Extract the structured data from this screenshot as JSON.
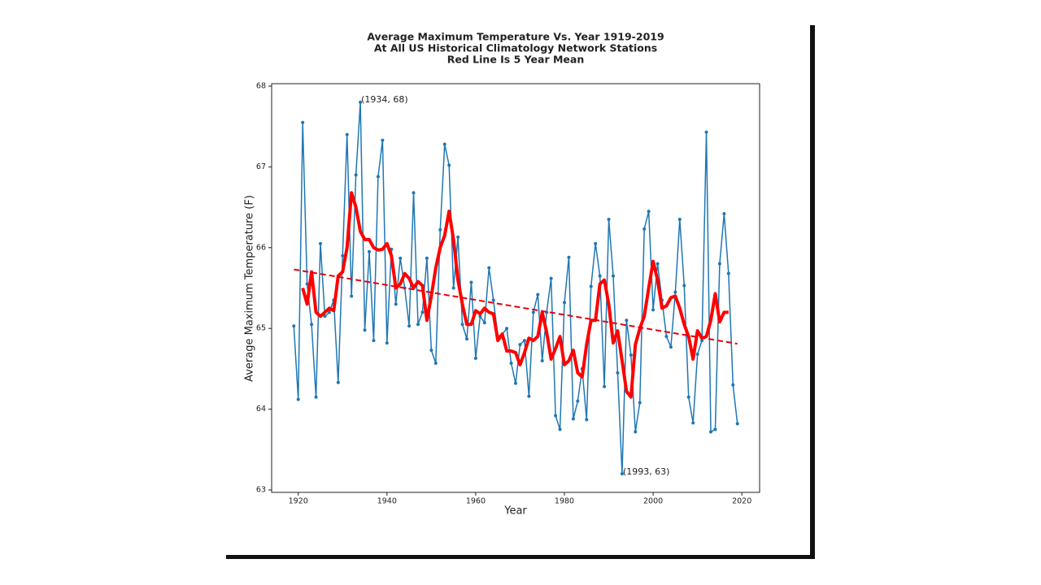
{
  "chart_data": {
    "type": "line",
    "title": [
      "Average Maximum Temperature Vs. Year 1919-2019",
      "At All US Historical Climatology Network Stations",
      "Red Line Is 5 Year Mean"
    ],
    "xlabel": "Year",
    "ylabel": "Average Maximum Temperature (F)",
    "xlim": [
      1914,
      2024
    ],
    "ylim": [
      62.97,
      68.03
    ],
    "xticks": [
      1920,
      1940,
      1960,
      1980,
      2000,
      2020
    ],
    "yticks": [
      63,
      64,
      65,
      66,
      67,
      68
    ],
    "annotations": [
      "(1934, 68)",
      "(1993, 63)"
    ],
    "series": [
      {
        "color": "#1f77b4",
        "marker": true,
        "x": [
          1919,
          1920,
          1921,
          1922,
          1923,
          1924,
          1925,
          1926,
          1927,
          1928,
          1929,
          1930,
          1931,
          1932,
          1933,
          1934,
          1935,
          1936,
          1937,
          1938,
          1939,
          1940,
          1941,
          1942,
          1943,
          1944,
          1945,
          1946,
          1947,
          1948,
          1949,
          1950,
          1951,
          1952,
          1953,
          1954,
          1955,
          1956,
          1957,
          1958,
          1959,
          1960,
          1961,
          1962,
          1963,
          1964,
          1965,
          1966,
          1967,
          1968,
          1969,
          1970,
          1971,
          1972,
          1973,
          1974,
          1975,
          1976,
          1977,
          1978,
          1979,
          1980,
          1981,
          1982,
          1983,
          1984,
          1985,
          1986,
          1987,
          1988,
          1989,
          1990,
          1991,
          1992,
          1993,
          1994,
          1995,
          1996,
          1997,
          1998,
          1999,
          2000,
          2001,
          2002,
          2003,
          2004,
          2005,
          2006,
          2007,
          2008,
          2009,
          2010,
          2011,
          2012,
          2013,
          2014,
          2015,
          2016,
          2017,
          2018,
          2019
        ],
        "values": [
          65.03,
          64.12,
          67.55,
          65.55,
          65.05,
          64.15,
          66.05,
          65.15,
          65.2,
          65.35,
          64.33,
          65.9,
          67.4,
          65.4,
          66.9,
          67.8,
          64.98,
          65.95,
          64.85,
          66.88,
          67.33,
          64.82,
          65.98,
          65.3,
          65.87,
          65.5,
          65.03,
          66.68,
          65.05,
          65.2,
          65.87,
          64.73,
          64.57,
          66.22,
          67.28,
          67.02,
          65.5,
          66.13,
          65.05,
          64.87,
          65.57,
          64.63,
          65.15,
          65.07,
          65.75,
          65.35,
          64.9,
          64.93,
          65.0,
          64.57,
          64.32,
          64.8,
          64.85,
          64.16,
          65.2,
          65.42,
          64.6,
          65.2,
          65.62,
          63.92,
          63.75,
          65.32,
          65.88,
          63.88,
          64.1,
          64.5,
          63.87,
          65.52,
          66.05,
          65.65,
          64.28,
          66.35,
          65.65,
          64.45,
          63.2,
          65.1,
          64.67,
          63.72,
          64.08,
          66.23,
          66.45,
          65.23,
          65.8,
          65.35,
          64.9,
          64.77,
          65.45,
          66.35,
          65.53,
          64.15,
          63.83,
          64.68,
          64.85,
          67.43,
          63.72,
          63.75,
          65.8,
          66.42,
          65.68,
          64.3,
          63.82
        ]
      },
      {
        "color": "#ff0000",
        "width": 4,
        "x": [
          1921,
          1922,
          1923,
          1924,
          1925,
          1926,
          1927,
          1928,
          1929,
          1930,
          1931,
          1932,
          1933,
          1934,
          1935,
          1936,
          1937,
          1938,
          1939,
          1940,
          1941,
          1942,
          1943,
          1944,
          1945,
          1946,
          1947,
          1948,
          1949,
          1950,
          1951,
          1952,
          1953,
          1954,
          1955,
          1956,
          1957,
          1958,
          1959,
          1960,
          1961,
          1962,
          1963,
          1964,
          1965,
          1966,
          1967,
          1968,
          1969,
          1970,
          1971,
          1972,
          1973,
          1974,
          1975,
          1976,
          1977,
          1978,
          1979,
          1980,
          1981,
          1982,
          1983,
          1984,
          1985,
          1986,
          1987,
          1988,
          1989,
          1990,
          1991,
          1992,
          1993,
          1994,
          1995,
          1996,
          1997,
          1998,
          1999,
          2000,
          2001,
          2002,
          2003,
          2004,
          2005,
          2006,
          2007,
          2008,
          2009,
          2010,
          2011,
          2012,
          2013,
          2014,
          2015,
          2016,
          2017
        ],
        "values": [
          65.5,
          65.3,
          65.7,
          65.2,
          65.15,
          65.2,
          65.25,
          65.22,
          65.65,
          65.7,
          66.0,
          66.68,
          66.5,
          66.2,
          66.1,
          66.1,
          66.0,
          65.97,
          65.98,
          66.05,
          65.9,
          65.5,
          65.55,
          65.68,
          65.62,
          65.5,
          65.58,
          65.53,
          65.1,
          65.4,
          65.75,
          66.0,
          66.15,
          66.45,
          66.1,
          65.6,
          65.3,
          65.05,
          65.05,
          65.22,
          65.18,
          65.25,
          65.2,
          65.18,
          64.85,
          64.93,
          64.72,
          64.72,
          64.7,
          64.55,
          64.7,
          64.88,
          64.85,
          64.9,
          65.2,
          64.95,
          64.62,
          64.75,
          64.9,
          64.55,
          64.6,
          64.73,
          64.45,
          64.4,
          64.8,
          65.1,
          65.1,
          65.55,
          65.6,
          65.3,
          64.82,
          64.97,
          64.6,
          64.22,
          64.15,
          64.8,
          65.0,
          65.15,
          65.5,
          65.83,
          65.6,
          65.25,
          65.28,
          65.38,
          65.4,
          65.25,
          65.05,
          64.9,
          64.62,
          64.97,
          64.88,
          64.9,
          65.1,
          65.43,
          65.08,
          65.2,
          65.2
        ]
      },
      {
        "color": "#e8000b",
        "width": 2,
        "dash": true,
        "x": [
          1919,
          2019
        ],
        "values": [
          65.73,
          64.81
        ]
      }
    ]
  }
}
